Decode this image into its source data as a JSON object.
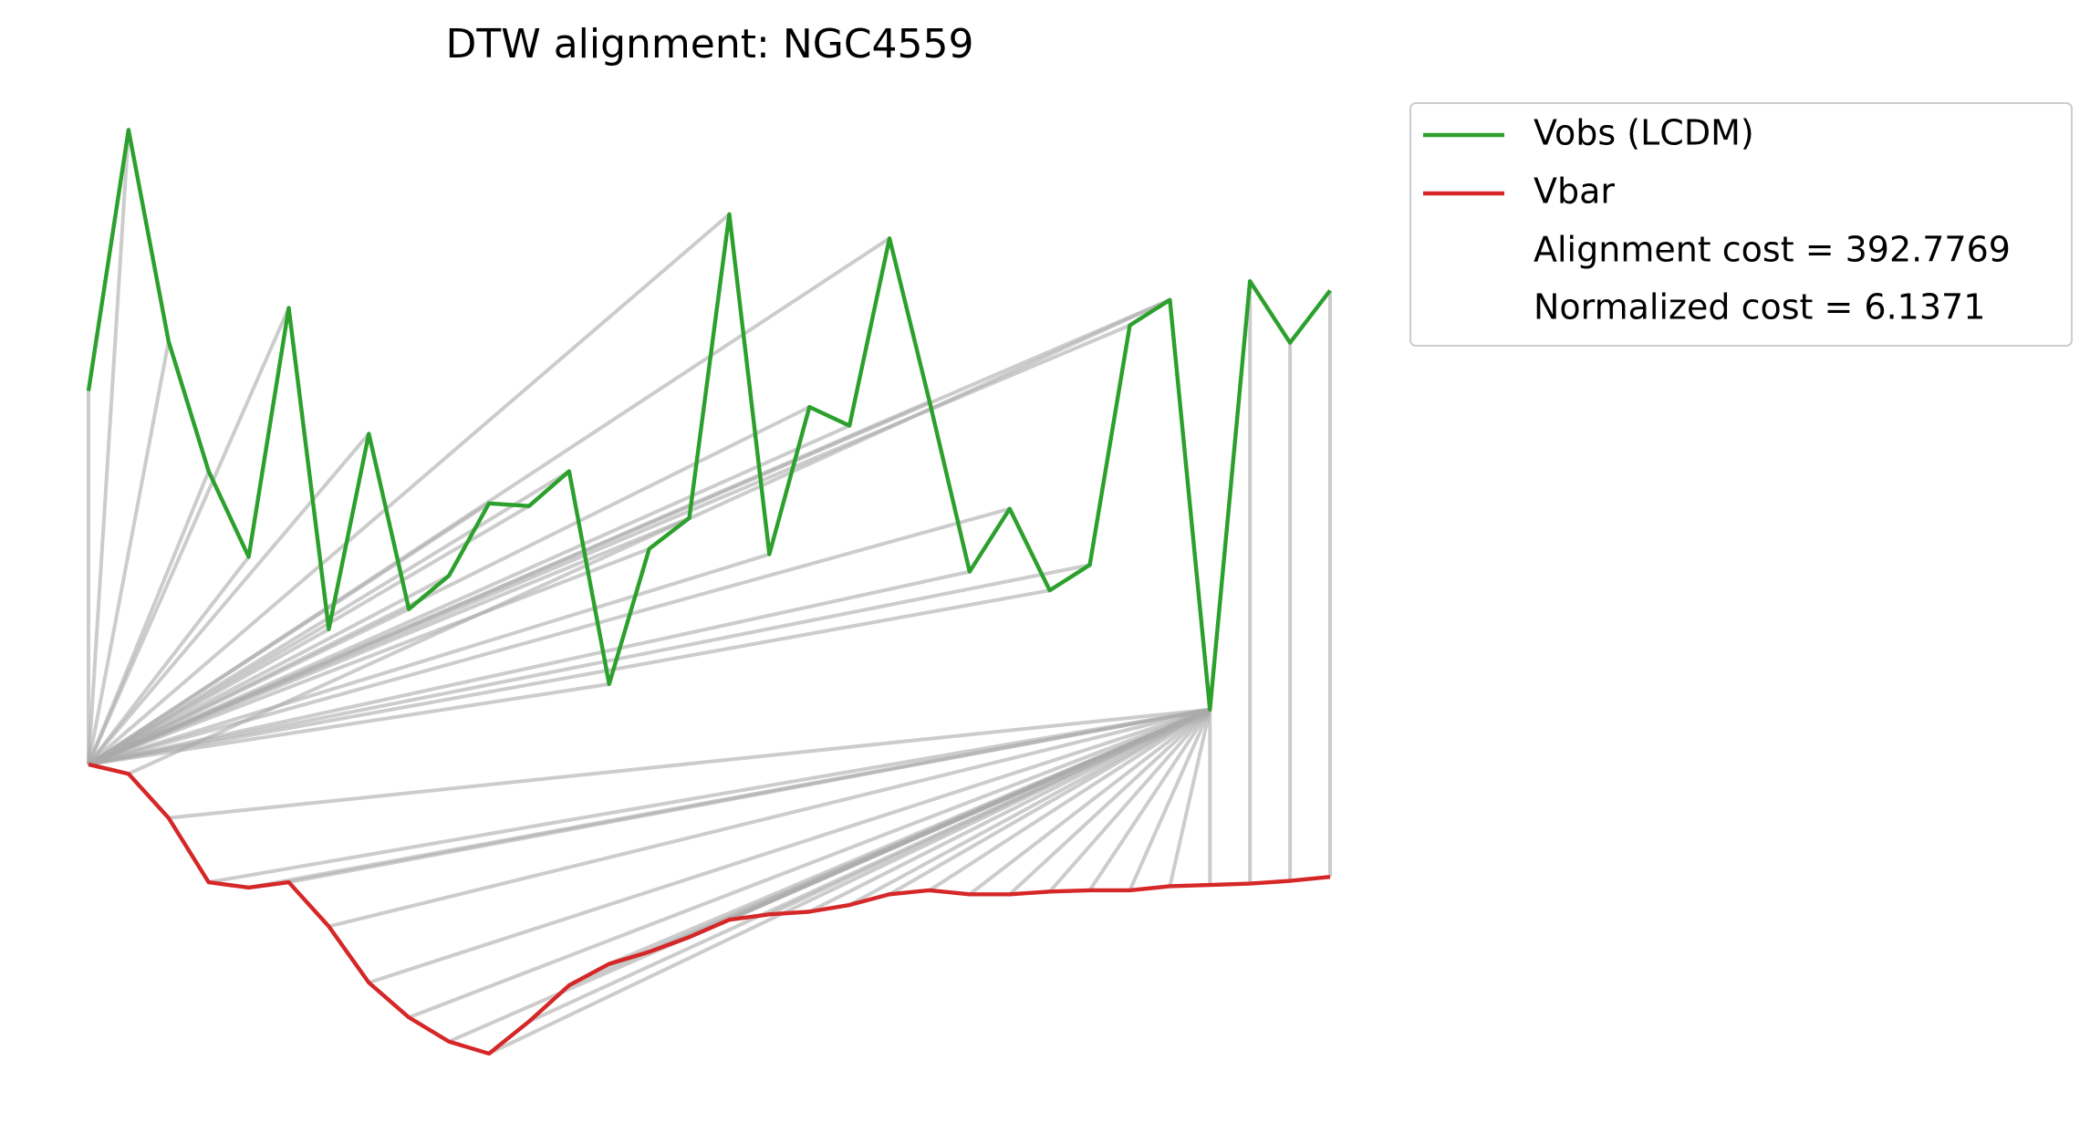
{
  "chart_data": {
    "type": "dtw",
    "title": "DTW alignment: NGC4559",
    "series": [
      {
        "name": "Vobs (LCDM)",
        "color": "#2ca02c",
        "values": [
          508,
          703,
          545,
          448,
          384,
          570,
          330,
          476,
          345,
          370,
          424,
          422,
          448,
          289,
          390,
          413,
          640,
          386,
          496,
          482,
          622,
          500,
          373,
          420,
          359,
          378,
          557,
          576,
          270,
          590,
          544,
          583
        ]
      },
      {
        "name": "Vbar",
        "color": "#d62728",
        "values": [
          229,
          222,
          189,
          141,
          137,
          141,
          108,
          66,
          40,
          22,
          13,
          37,
          64,
          80,
          89,
          100,
          113,
          117,
          119,
          124,
          132,
          135,
          132,
          132,
          134,
          135,
          135,
          138,
          139,
          140,
          142,
          145
        ]
      }
    ],
    "alignment": [
      [
        0,
        0
      ],
      [
        1,
        0
      ],
      [
        2,
        0
      ],
      [
        3,
        0
      ],
      [
        4,
        0
      ],
      [
        5,
        0
      ],
      [
        6,
        0
      ],
      [
        7,
        0
      ],
      [
        8,
        0
      ],
      [
        9,
        0
      ],
      [
        10,
        0
      ],
      [
        11,
        0
      ],
      [
        12,
        0
      ],
      [
        13,
        0
      ],
      [
        14,
        0
      ],
      [
        15,
        0
      ],
      [
        16,
        0
      ],
      [
        17,
        0
      ],
      [
        18,
        0
      ],
      [
        19,
        0
      ],
      [
        20,
        0
      ],
      [
        21,
        0
      ],
      [
        22,
        0
      ],
      [
        23,
        0
      ],
      [
        24,
        0
      ],
      [
        25,
        0
      ],
      [
        26,
        0
      ],
      [
        27,
        0
      ],
      [
        27,
        1
      ],
      [
        28,
        2
      ],
      [
        28,
        3
      ],
      [
        28,
        4
      ],
      [
        28,
        5
      ],
      [
        28,
        6
      ],
      [
        28,
        7
      ],
      [
        28,
        8
      ],
      [
        28,
        9
      ],
      [
        28,
        10
      ],
      [
        28,
        11
      ],
      [
        28,
        12
      ],
      [
        28,
        13
      ],
      [
        28,
        14
      ],
      [
        28,
        15
      ],
      [
        28,
        16
      ],
      [
        28,
        17
      ],
      [
        28,
        18
      ],
      [
        28,
        19
      ],
      [
        28,
        20
      ],
      [
        28,
        21
      ],
      [
        28,
        22
      ],
      [
        28,
        23
      ],
      [
        28,
        24
      ],
      [
        28,
        25
      ],
      [
        28,
        26
      ],
      [
        28,
        27
      ],
      [
        28,
        28
      ],
      [
        29,
        29
      ],
      [
        30,
        30
      ],
      [
        31,
        31
      ]
    ],
    "annotations": [
      "Alignment cost = 392.7769",
      "Normalized cost = 6.1371"
    ],
    "link_color": "#aaaaaa",
    "ylim": [
      0,
      800
    ]
  }
}
